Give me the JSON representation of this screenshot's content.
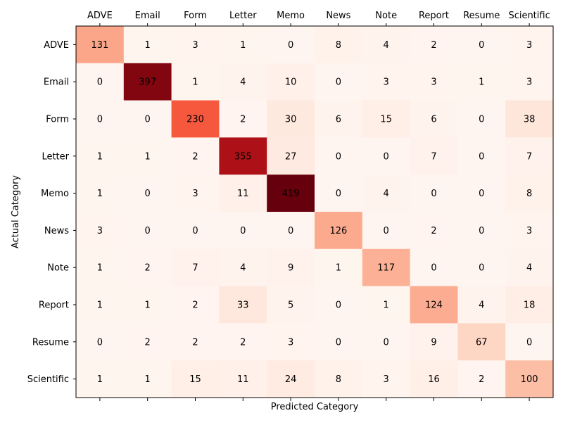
{
  "chart_data": {
    "type": "heatmap",
    "x_categories": [
      "ADVE",
      "Email",
      "Form",
      "Letter",
      "Memo",
      "News",
      "Note",
      "Report",
      "Resume",
      "Scientific"
    ],
    "y_categories": [
      "ADVE",
      "Email",
      "Form",
      "Letter",
      "Memo",
      "News",
      "Note",
      "Report",
      "Resume",
      "Scientific"
    ],
    "values": [
      [
        131,
        1,
        3,
        1,
        0,
        8,
        4,
        2,
        0,
        3
      ],
      [
        0,
        397,
        1,
        4,
        10,
        0,
        3,
        3,
        1,
        3
      ],
      [
        0,
        0,
        230,
        2,
        30,
        6,
        15,
        6,
        0,
        38
      ],
      [
        1,
        1,
        2,
        355,
        27,
        0,
        0,
        7,
        0,
        7
      ],
      [
        1,
        0,
        3,
        11,
        419,
        0,
        4,
        0,
        0,
        8
      ],
      [
        3,
        0,
        0,
        0,
        0,
        126,
        0,
        2,
        0,
        3
      ],
      [
        1,
        2,
        7,
        4,
        9,
        1,
        117,
        0,
        0,
        4
      ],
      [
        1,
        1,
        2,
        33,
        5,
        0,
        1,
        124,
        4,
        18
      ],
      [
        0,
        2,
        2,
        2,
        3,
        0,
        0,
        9,
        67,
        0
      ],
      [
        1,
        1,
        15,
        11,
        24,
        8,
        3,
        16,
        2,
        100
      ]
    ],
    "xlabel": "Predicted Category",
    "ylabel": "Actual Category",
    "colormap": "Reds",
    "x_tick_labels_position": "top",
    "grid": false
  }
}
